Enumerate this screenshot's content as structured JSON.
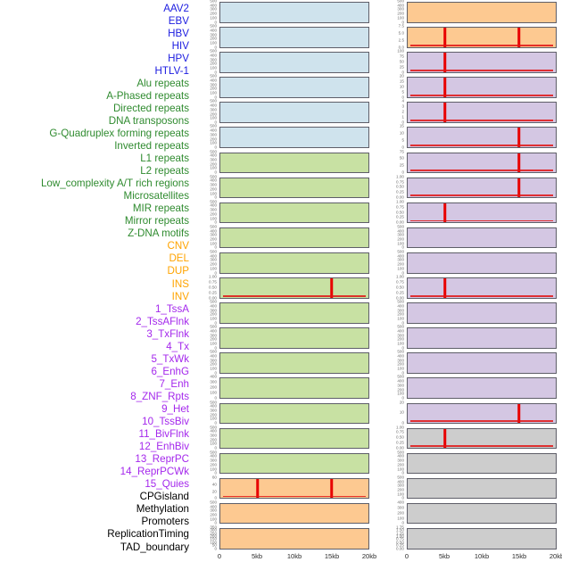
{
  "style": {
    "panel_border_color": "#5e5e68",
    "spike_color": "#e80000",
    "baseline_color": "rgba(225,20,20,0.85)",
    "ytick_color": "#6e6e6e",
    "xtick_color": "#2a2a2a",
    "background": "#ffffff"
  },
  "groups": {
    "virus": {
      "label_color": "#1c1ce0",
      "panel_fill": "#cfe3ed"
    },
    "repeat": {
      "label_color": "#2f8b2f",
      "panel_fill": "#c8e1a3"
    },
    "structural_variant": {
      "label_color": "#ffa400",
      "panel_fill": "#fdc991"
    },
    "chromatin_state": {
      "label_color": "#a428ec",
      "panel_fill": "#d4c7e3"
    },
    "other": {
      "label_color": "#000000",
      "panel_fill": "#cdcdcd"
    }
  },
  "chart_data": {
    "type": "area",
    "title": "",
    "description": "Small-multiple genomic feature tracks over a 0-20kb window; 44 features arranged column-major in two columns of 22 panels; red vertical spikes mark signal at 5kb / 15kb with a red baseline",
    "layout": {
      "columns": 2,
      "rows_per_column": 22,
      "legend": "none",
      "grid": "off"
    },
    "x_axis": {
      "tick_labels": [
        "0",
        "5kb",
        "10kb",
        "15kb",
        "20kb"
      ],
      "range_kb": [
        0,
        20
      ]
    },
    "features": [
      {
        "name": "AAV2",
        "group": "virus",
        "y_ticks": [
          "500",
          "400",
          "300",
          "200",
          "100",
          "0"
        ],
        "spikes_kb": []
      },
      {
        "name": "EBV",
        "group": "virus",
        "y_ticks": [
          "500",
          "400",
          "300",
          "200",
          "100",
          "0"
        ],
        "spikes_kb": []
      },
      {
        "name": "HBV",
        "group": "virus",
        "y_ticks": [
          "500",
          "400",
          "300",
          "200",
          "100",
          "0"
        ],
        "spikes_kb": []
      },
      {
        "name": "HIV",
        "group": "virus",
        "y_ticks": [
          "500",
          "400",
          "300",
          "200",
          "100",
          "0"
        ],
        "spikes_kb": []
      },
      {
        "name": "HPV",
        "group": "virus",
        "y_ticks": [
          "500",
          "400",
          "300",
          "200",
          "100",
          "0"
        ],
        "spikes_kb": []
      },
      {
        "name": "HTLV-1",
        "group": "virus",
        "y_ticks": [
          "500",
          "400",
          "300",
          "200",
          "100",
          "0"
        ],
        "spikes_kb": []
      },
      {
        "name": "Alu repeats",
        "group": "repeat",
        "y_ticks": [
          "500",
          "400",
          "300",
          "200",
          "100",
          "0"
        ],
        "spikes_kb": []
      },
      {
        "name": "A-Phased repeats",
        "group": "repeat",
        "y_ticks": [
          "500",
          "400",
          "300",
          "200",
          "100",
          "0"
        ],
        "spikes_kb": []
      },
      {
        "name": "Directed repeats",
        "group": "repeat",
        "y_ticks": [
          "500",
          "400",
          "300",
          "200",
          "100",
          "0"
        ],
        "spikes_kb": []
      },
      {
        "name": "DNA transposons",
        "group": "repeat",
        "y_ticks": [
          "500",
          "400",
          "300",
          "200",
          "100",
          "0"
        ],
        "spikes_kb": []
      },
      {
        "name": "G-Quadruplex forming repeats",
        "group": "repeat",
        "y_ticks": [
          "500",
          "400",
          "300",
          "200",
          "100",
          "0"
        ],
        "spikes_kb": []
      },
      {
        "name": "Inverted repeats",
        "group": "repeat",
        "y_ticks": [
          "1.00",
          "0.75",
          "0.50",
          "0.25",
          "0.00"
        ],
        "spikes_kb": [
          15
        ]
      },
      {
        "name": "L1 repeats",
        "group": "repeat",
        "y_ticks": [
          "500",
          "400",
          "300",
          "200",
          "100",
          "0"
        ],
        "spikes_kb": []
      },
      {
        "name": "L2 repeats",
        "group": "repeat",
        "y_ticks": [
          "500",
          "400",
          "300",
          "200",
          "100",
          "0"
        ],
        "spikes_kb": []
      },
      {
        "name": "Low_complexity A/T rich regions",
        "group": "repeat",
        "y_ticks": [
          "500",
          "400",
          "300",
          "200",
          "100",
          "0"
        ],
        "spikes_kb": []
      },
      {
        "name": "Microsatellites",
        "group": "repeat",
        "y_ticks": [
          "400",
          "300",
          "200",
          "100",
          "0"
        ],
        "spikes_kb": []
      },
      {
        "name": "MIR repeats",
        "group": "repeat",
        "y_ticks": [
          "500",
          "400",
          "300",
          "200",
          "100",
          "0"
        ],
        "spikes_kb": []
      },
      {
        "name": "Mirror repeats",
        "group": "repeat",
        "y_ticks": [
          "500",
          "400",
          "300",
          "200",
          "100",
          "0"
        ],
        "spikes_kb": []
      },
      {
        "name": "Z-DNA motifs",
        "group": "repeat",
        "y_ticks": [
          "500",
          "400",
          "300",
          "200",
          "100",
          "0"
        ],
        "spikes_kb": []
      },
      {
        "name": "CNV",
        "group": "structural_variant",
        "y_ticks": [
          "60",
          "40",
          "20",
          "0"
        ],
        "spikes_kb": [
          5,
          15
        ]
      },
      {
        "name": "DEL",
        "group": "structural_variant",
        "y_ticks": [
          "500",
          "400",
          "300",
          "200",
          "100",
          "0"
        ],
        "spikes_kb": []
      },
      {
        "name": "DUP",
        "group": "structural_variant",
        "y_ticks": [
          "350",
          "300",
          "250",
          "200",
          "150",
          "100",
          "50",
          "0"
        ],
        "spikes_kb": []
      },
      {
        "name": "INS",
        "group": "structural_variant",
        "y_ticks": [
          "500",
          "400",
          "300",
          "200",
          "100",
          "0"
        ],
        "spikes_kb": []
      },
      {
        "name": "INV",
        "group": "structural_variant",
        "y_ticks": [
          "7.5",
          "5.0",
          "2.5",
          "0.0"
        ],
        "spikes_kb": [
          5,
          15
        ]
      },
      {
        "name": "1_TssA",
        "group": "chromatin_state",
        "y_ticks": [
          "100",
          "75",
          "50",
          "25",
          "0"
        ],
        "spikes_kb": [
          5
        ]
      },
      {
        "name": "2_TssAFlnk",
        "group": "chromatin_state",
        "y_ticks": [
          "20",
          "15",
          "10",
          "5",
          "0"
        ],
        "spikes_kb": [
          5
        ]
      },
      {
        "name": "3_TxFlnk",
        "group": "chromatin_state",
        "y_ticks": [
          "4",
          "3",
          "2",
          "1",
          "0"
        ],
        "spikes_kb": [
          5
        ]
      },
      {
        "name": "4_Tx",
        "group": "chromatin_state",
        "y_ticks": [
          "15",
          "10",
          "5",
          "0"
        ],
        "spikes_kb": [
          15
        ]
      },
      {
        "name": "5_TxWk",
        "group": "chromatin_state",
        "y_ticks": [
          "75",
          "50",
          "25",
          "0"
        ],
        "spikes_kb": [
          15
        ]
      },
      {
        "name": "6_EnhG",
        "group": "chromatin_state",
        "y_ticks": [
          "1.00",
          "0.75",
          "0.50",
          "0.25",
          "0.00"
        ],
        "spikes_kb": [
          15
        ]
      },
      {
        "name": "7_Enh",
        "group": "chromatin_state",
        "y_ticks": [
          "1.00",
          "0.75",
          "0.50",
          "0.25",
          "0.00"
        ],
        "spikes_kb": [
          5
        ]
      },
      {
        "name": "8_ZNF_Rpts",
        "group": "chromatin_state",
        "y_ticks": [
          "500",
          "400",
          "300",
          "200",
          "100",
          "0"
        ],
        "spikes_kb": []
      },
      {
        "name": "9_Het",
        "group": "chromatin_state",
        "y_ticks": [
          "500",
          "400",
          "300",
          "200",
          "100",
          "0"
        ],
        "spikes_kb": []
      },
      {
        "name": "10_TssBiv",
        "group": "chromatin_state",
        "y_ticks": [
          "1.00",
          "0.75",
          "0.50",
          "0.25",
          "0.00"
        ],
        "spikes_kb": [
          5
        ]
      },
      {
        "name": "11_BivFlnk",
        "group": "chromatin_state",
        "y_ticks": [
          "500",
          "400",
          "300",
          "200",
          "100",
          "0"
        ],
        "spikes_kb": []
      },
      {
        "name": "12_EnhBiv",
        "group": "chromatin_state",
        "y_ticks": [
          "500",
          "400",
          "300",
          "200",
          "100",
          "0"
        ],
        "spikes_kb": []
      },
      {
        "name": "13_ReprPC",
        "group": "chromatin_state",
        "y_ticks": [
          "500",
          "400",
          "300",
          "200",
          "100",
          "0"
        ],
        "spikes_kb": []
      },
      {
        "name": "14_ReprPCWk",
        "group": "chromatin_state",
        "y_ticks": [
          "500",
          "400",
          "300",
          "200",
          "100",
          "0"
        ],
        "spikes_kb": []
      },
      {
        "name": "15_Quies",
        "group": "chromatin_state",
        "y_ticks": [
          "20",
          "10",
          "0"
        ],
        "spikes_kb": [
          15
        ]
      },
      {
        "name": "CPGisland",
        "group": "other",
        "y_ticks": [
          "1.00",
          "0.75",
          "0.50",
          "0.25",
          "0.00"
        ],
        "spikes_kb": [
          5
        ]
      },
      {
        "name": "Methylation",
        "group": "other",
        "y_ticks": [
          "500",
          "400",
          "300",
          "200",
          "100",
          "0"
        ],
        "spikes_kb": []
      },
      {
        "name": "Promoters",
        "group": "other",
        "y_ticks": [
          "500",
          "400",
          "300",
          "200",
          "100",
          "0"
        ],
        "spikes_kb": []
      },
      {
        "name": "ReplicationTiming",
        "group": "other",
        "y_ticks": [
          "400",
          "300",
          "200",
          "100",
          "0"
        ],
        "spikes_kb": []
      },
      {
        "name": "TAD_boundary",
        "group": "other",
        "y_ticks": [
          "1.75",
          "1.50",
          "1.25",
          "1.00",
          "0.75",
          "0.50",
          "0.25",
          "0.00"
        ],
        "spikes_kb": []
      }
    ]
  }
}
